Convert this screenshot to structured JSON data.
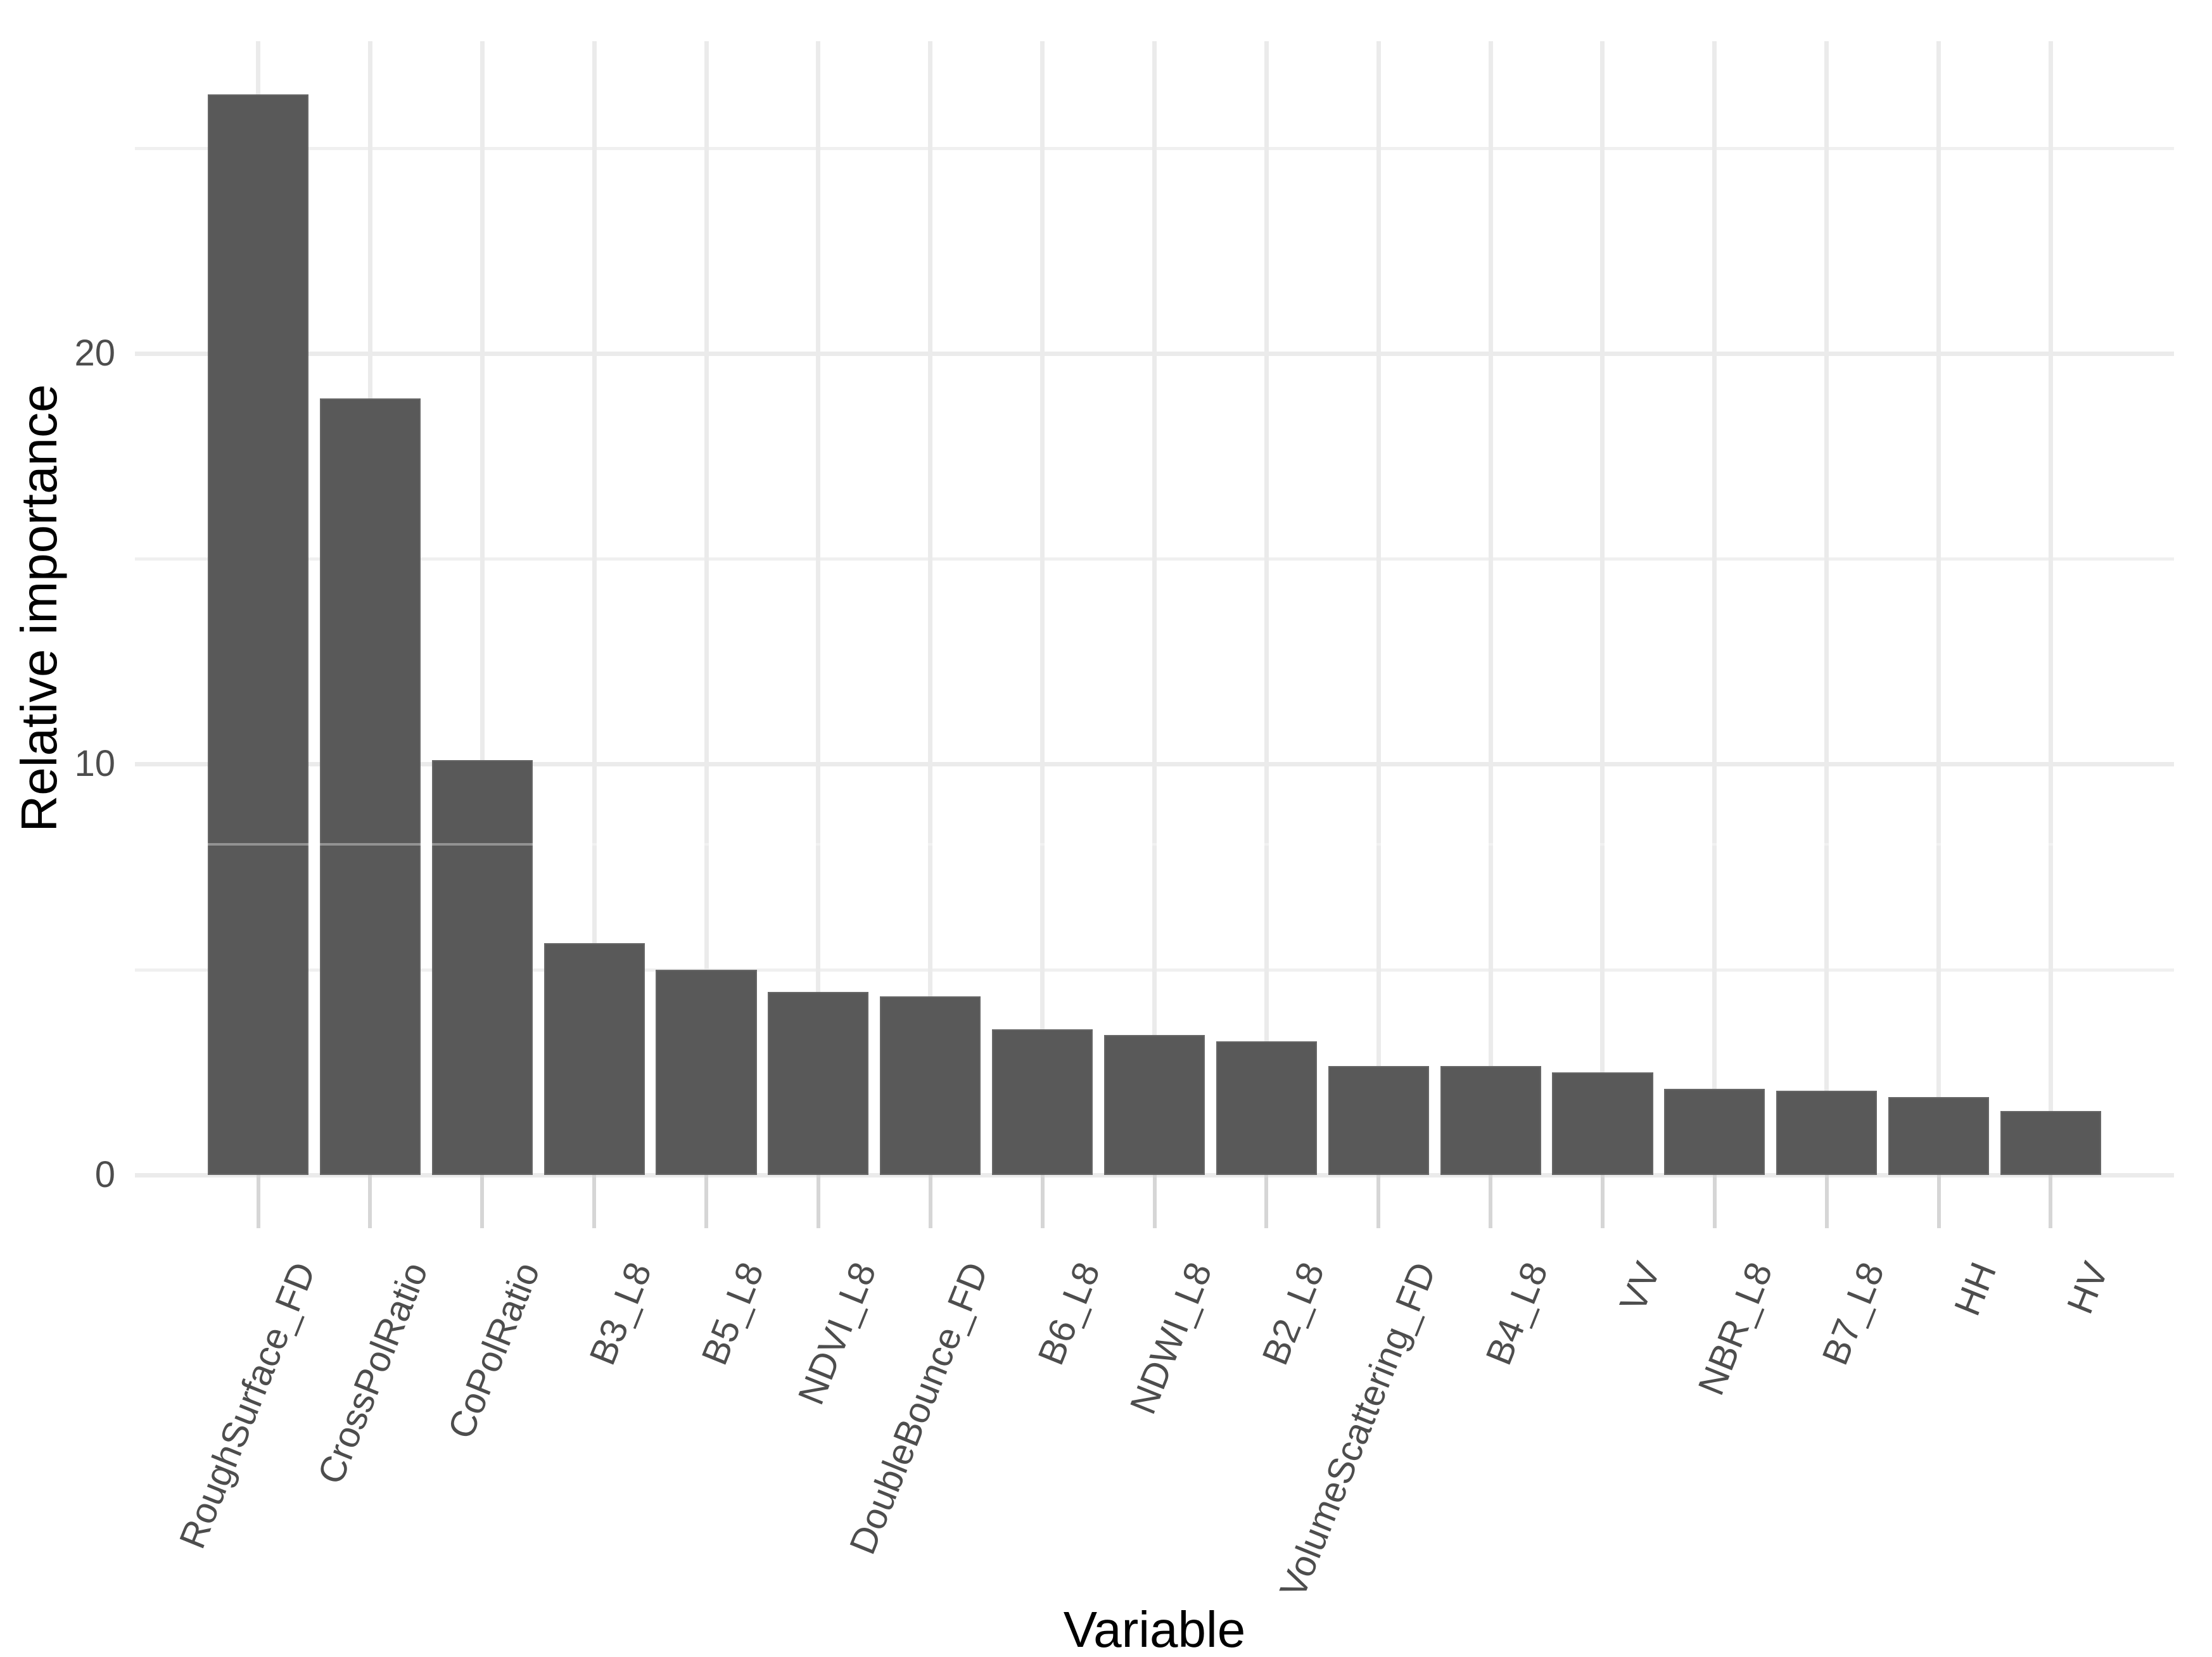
{
  "chart_data": {
    "type": "bar",
    "title": "",
    "xlabel": "Variable",
    "ylabel": "Relative importance",
    "categories": [
      "RoughSurface_FD",
      "CrossPolRatio",
      "CoPolRatio",
      "B3_L8",
      "B5_L8",
      "NDVI_L8",
      "DoubleBounce_FD",
      "B6_L8",
      "NDWI_L8",
      "B2_L8",
      "VolumeScattering_FD",
      "B4_L8",
      "VV",
      "NBR_L8",
      "B7_L8",
      "HH",
      "HV"
    ],
    "values": [
      26.3,
      18.9,
      10.1,
      5.65,
      5.0,
      4.45,
      4.35,
      3.55,
      3.4,
      3.25,
      2.65,
      2.65,
      2.5,
      2.1,
      2.05,
      1.9,
      1.55
    ],
    "y_major_ticks": [
      0,
      10,
      20
    ],
    "y_minor_gridlines": [
      5,
      15,
      25
    ],
    "ylim": [
      0,
      27.6
    ],
    "faint_artifact_line_y": 8.05,
    "x_label_angle_deg": 68,
    "bar_color": "#595959",
    "grid_major_color": "#EBEBEB",
    "grid_minor_color": "#F0F0F0",
    "tick_mark_color": "#D6D6D6",
    "tick_label_color": "#4D4D4D",
    "axis_title_color": "#000000",
    "background_color": "#FFFFFF",
    "legend": "none",
    "grid": "on"
  }
}
